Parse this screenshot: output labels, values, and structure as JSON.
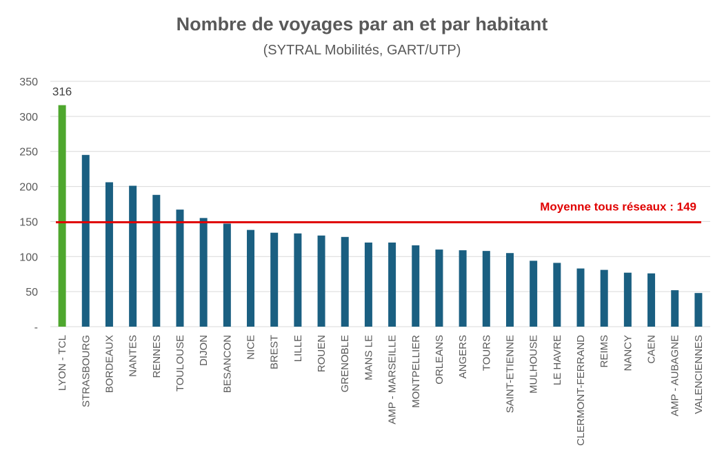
{
  "chart_data": {
    "type": "bar",
    "title": "Nombre de voyages par an et par habitant",
    "subtitle": "(SYTRAL Mobilités, GART/UTP)",
    "xlabel": "",
    "ylabel": "",
    "ylim": [
      0,
      350
    ],
    "yticks": [
      {
        "value": 0,
        "label": "-"
      },
      {
        "value": 50,
        "label": "50"
      },
      {
        "value": 100,
        "label": "100"
      },
      {
        "value": 150,
        "label": "150"
      },
      {
        "value": 200,
        "label": "200"
      },
      {
        "value": 250,
        "label": "250"
      },
      {
        "value": 300,
        "label": "300"
      },
      {
        "value": 350,
        "label": "350"
      }
    ],
    "grid": true,
    "categories": [
      "LYON - TCL",
      "STRASBOURG",
      "BORDEAUX",
      "NANTES",
      "RENNES",
      "TOULOUSE",
      "DIJON",
      "BESANCON",
      "NICE",
      "BREST",
      "LILLE",
      "ROUEN",
      "GRENOBLE",
      "MANS LE",
      "AMP - MARSEILLE",
      "MONTPELLIER",
      "ORLEANS",
      "ANGERS",
      "TOURS",
      "SAINT-ETIENNE",
      "MULHOUSE",
      "LE HAVRE",
      "CLERMONT-FERRAND",
      "REIMS",
      "NANCY",
      "CAEN",
      "AMP - AUBAGNE",
      "VALENCIENNES"
    ],
    "values": [
      316,
      245,
      206,
      201,
      188,
      167,
      155,
      147,
      138,
      134,
      133,
      130,
      128,
      120,
      120,
      116,
      110,
      109,
      108,
      105,
      94,
      91,
      83,
      81,
      77,
      76,
      52,
      48
    ],
    "highlight_index": 0,
    "highlight_label": "316",
    "colors": {
      "highlight": "#4ea72e",
      "default": "#1a5f81",
      "average": "#e00000",
      "grid": "#d9d9d9"
    },
    "average": {
      "value": 149,
      "label": "Moyenne tous réseaux : 149"
    }
  }
}
